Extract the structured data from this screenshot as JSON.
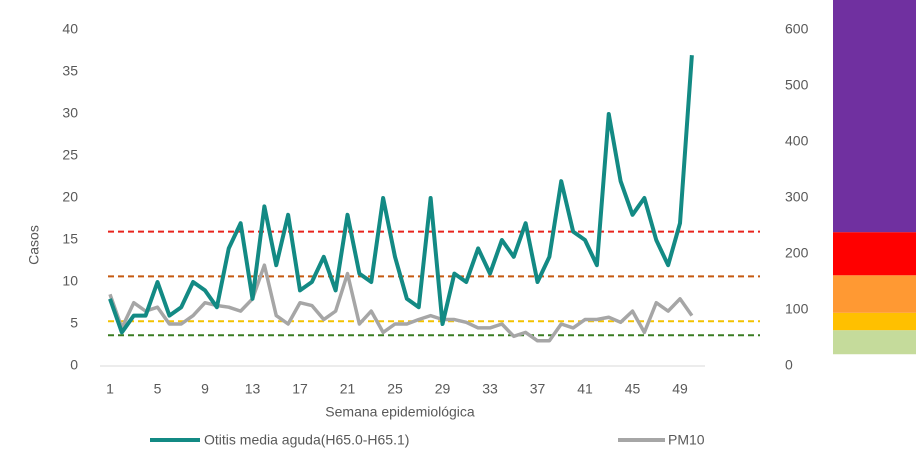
{
  "chart_data": {
    "type": "line",
    "xlabel": "Semana epidemiológica",
    "ylabel": "Casos",
    "categories": [
      "1",
      null,
      null,
      null,
      "5",
      null,
      null,
      null,
      "9",
      null,
      null,
      null,
      "13",
      null,
      null,
      null,
      "17",
      null,
      null,
      null,
      "21",
      null,
      null,
      null,
      "25",
      null,
      null,
      null,
      "29",
      null,
      null,
      null,
      "33",
      null,
      null,
      null,
      "37",
      null,
      null,
      null,
      "41",
      null,
      null,
      null,
      "45",
      null,
      null,
      null,
      "49",
      null
    ],
    "ylim": [
      0,
      40
    ],
    "yticks": [
      0,
      5,
      10,
      15,
      20,
      25,
      30,
      35,
      40
    ],
    "y2lim": [
      0,
      600
    ],
    "y2ticks": [
      0,
      100,
      200,
      300,
      400,
      500,
      600
    ],
    "series": [
      {
        "name": "Otitis media aguda(H65.0-H65.1)",
        "color": "#138a84",
        "values": [
          8,
          4,
          6,
          6,
          10,
          6,
          7,
          10,
          9,
          7,
          14,
          17,
          8,
          19,
          12,
          18,
          9,
          10,
          13,
          9,
          18,
          11,
          10,
          20,
          13,
          8,
          7,
          20,
          5,
          11,
          10,
          14,
          11,
          15,
          13,
          17,
          10,
          13,
          22,
          16,
          15,
          12,
          30,
          22,
          18,
          20,
          15,
          12,
          17,
          37
        ]
      },
      {
        "name": "PM10",
        "color": "#a6a6a6",
        "axis": "y2",
        "values": [
          128,
          68,
          113,
          98,
          105,
          75,
          75,
          90,
          113,
          108,
          105,
          98,
          120,
          180,
          90,
          75,
          113,
          108,
          83,
          98,
          165,
          75,
          98,
          60,
          75,
          75,
          83,
          90,
          83,
          83,
          78,
          68,
          68,
          75,
          53,
          60,
          45,
          45,
          75,
          68,
          83,
          83,
          87,
          78,
          98,
          60,
          113,
          98,
          120,
          90
        ]
      }
    ],
    "thresholds": [
      {
        "value": 240,
        "color": "#e8231c"
      },
      {
        "value": 160,
        "color": "#c55a11"
      },
      {
        "value": 80,
        "color": "#f2c200"
      },
      {
        "value": 55,
        "color": "#3a7d22"
      }
    ],
    "bands": [
      {
        "from": 21,
        "to": 64,
        "color": "#c5db9b"
      },
      {
        "from": 64,
        "to": 95,
        "color": "#ffc000"
      },
      {
        "from": 95,
        "to": 162,
        "color": "#ff9933"
      },
      {
        "from": 162,
        "to": 239,
        "color": "#ff0000"
      },
      {
        "from": 239,
        "to": 654,
        "color": "#7030a0"
      }
    ]
  }
}
